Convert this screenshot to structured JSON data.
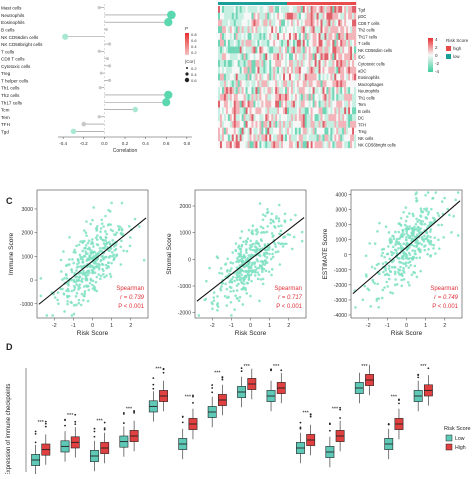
{
  "panel_labels": {
    "c": "C",
    "d": "D"
  },
  "chart_data": [
    {
      "type": "scatter",
      "subtype": "lollipop",
      "xlabel": "Correlation",
      "xticks": [
        "-0.4",
        "-0.2",
        "0.0",
        "0.2",
        "0.4",
        "0.6",
        "0.8"
      ],
      "xlim": [
        -0.45,
        0.85
      ],
      "categories": [
        "Mast cells",
        "Neutrophils",
        "Eosinophils",
        "B cells",
        "NK CD56dim cells",
        "NK CD56bright cells",
        "T cells",
        "CD8 T cells",
        "Cytotoxic cells",
        "Treg",
        "T helper cells",
        "Th1 cells",
        "Th2 cells",
        "Th17 cells",
        "Tcm",
        "Tem",
        "TFH",
        "Tgd"
      ],
      "values": [
        -0.05,
        0.65,
        0.62,
        0.02,
        -0.38,
        0.05,
        -0.05,
        0.03,
        0.05,
        -0.03,
        0.05,
        -0.04,
        0.62,
        0.6,
        0.3,
        -0.05,
        -0.2,
        -0.3
      ],
      "legend": {
        "title": "P",
        "p_ticks": [
          "0.8",
          "0.6",
          "0.4",
          "0.2"
        ],
        "size_title": "|Cor|",
        "size_labels": [
          "0.2",
          "0.4",
          "0.6"
        ]
      }
    },
    {
      "type": "heatmap",
      "row_labels": [
        "Tgd",
        "pDC",
        "CD8 T cells",
        "Th2 cells",
        "Th17 cells",
        "T cells",
        "NK CD56dim cells",
        "iDC",
        "Cytotoxic cells",
        "aDC",
        "Eosinophils",
        "Macrophages",
        "Neutrophils",
        "Th1 cells",
        "Tem",
        "B cells",
        "DC",
        "TFH",
        "Treg",
        "NK cells",
        "NK CD56bright cells"
      ],
      "legend_scale": [
        "4",
        "2",
        "0",
        "-2",
        "-4"
      ],
      "legend_title": "Risk Score",
      "legend_items": [
        "high",
        "low"
      ]
    },
    {
      "type": "scatter",
      "xlabel": "Risk Score",
      "ylabel": "Immune Score",
      "xticks": [
        "-2",
        "-1",
        "0",
        "1",
        "2"
      ],
      "yticks": [
        "3000",
        "2000",
        "1000",
        "0",
        "-1000"
      ],
      "xlim": [
        -2.9,
        2.9
      ],
      "ylim": [
        -1600,
        3800
      ],
      "fit": {
        "slope": 650,
        "intercept": 800
      },
      "stats": {
        "method": "Spearman",
        "r": "r = 0.739",
        "p": "P < 0.001"
      }
    },
    {
      "type": "scatter",
      "xlabel": "Risk Score",
      "ylabel": "Stromal Score",
      "xticks": [
        "-2",
        "-1",
        "0",
        "1",
        "2"
      ],
      "yticks": [
        "2000",
        "1000",
        "0",
        "-1000",
        "-2000"
      ],
      "xlim": [
        -2.9,
        2.9
      ],
      "ylim": [
        -2200,
        2600
      ],
      "fit": {
        "slope": 560,
        "intercept": 0
      },
      "stats": {
        "method": "Spearman",
        "r": "r = 0.717",
        "p": "P < 0.001"
      }
    },
    {
      "type": "scatter",
      "xlabel": "Risk Score",
      "ylabel": "ESTIMATE Score",
      "xticks": [
        "-2",
        "-1",
        "0",
        "1",
        "2"
      ],
      "yticks": [
        "4000",
        "3000",
        "2000",
        "1000",
        "0",
        "-1000",
        "-2000",
        "-3000",
        "-4000"
      ],
      "xlim": [
        -2.9,
        2.9
      ],
      "ylim": [
        -4200,
        4300
      ],
      "fit": {
        "slope": 1100,
        "intercept": 500
      },
      "stats": {
        "method": "Spearman",
        "r": "r = 0.749",
        "p": "P < 0.001"
      }
    },
    {
      "type": "box",
      "ylabel": "Expression of immune checkpoints",
      "legend_title": "Risk Score",
      "legend_items": [
        "Low",
        "High"
      ],
      "colors": {
        "low": "#5fc9b8",
        "high": "#e04040"
      },
      "significance": "***",
      "groups": [
        {
          "low": 1.5,
          "high": 2.8
        },
        {
          "low": 3.2,
          "high": 3.7
        },
        {
          "low": 2.0,
          "high": 3.0
        },
        {
          "low": 3.8,
          "high": 4.5
        },
        {
          "low": 8.2,
          "high": 9.5
        },
        {
          "low": 3.5,
          "high": 6.0
        },
        {
          "low": 7.5,
          "high": 9.0
        },
        {
          "low": 10.0,
          "high": 11.0
        },
        {
          "low": 9.5,
          "high": 10.5
        },
        {
          "low": 3.0,
          "high": 4.0
        },
        {
          "low": 2.5,
          "high": 4.5
        },
        {
          "low": 10.5,
          "high": 11.5
        },
        {
          "low": 3.5,
          "high": 6.0
        },
        {
          "low": 9.5,
          "high": 10.2
        }
      ]
    }
  ]
}
